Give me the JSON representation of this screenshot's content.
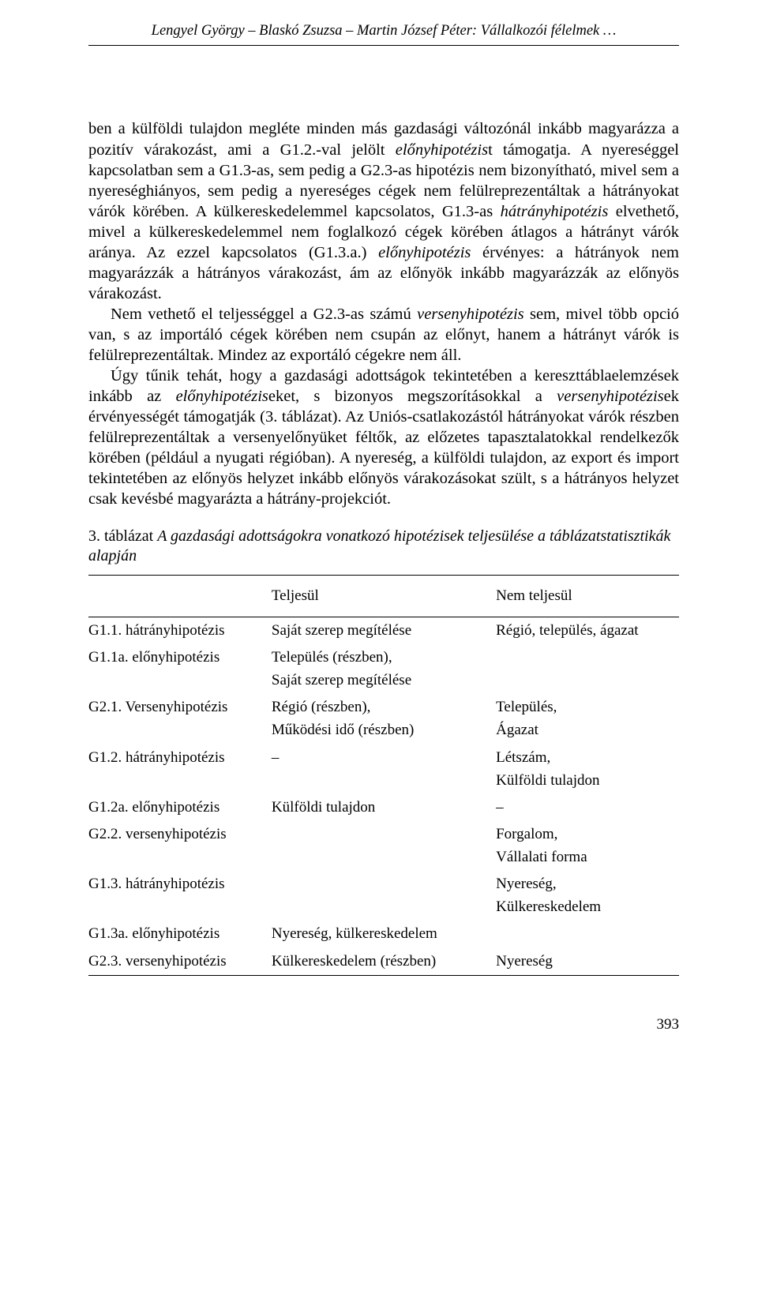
{
  "runningHead": "Lengyel György – Blaskó Zsuzsa – Martin József Péter: Vállalkozói félelmek …",
  "paragraphs": {
    "p1": "ben a külföldi tulajdon megléte minden más gazdasági változónál inkább magyarázza a pozitív várakozást, ami a G1.2.-val jelölt előnyhipotézist támogatja. A nyereséggel kapcsolatban sem a G1.3-as, sem pedig a G2.3-as hipotézis nem bizonyítható, mivel sem a nyereséghiányos, sem pedig a nyereséges cégek nem felülreprezentáltak a hátrányokat várók körében. A külkereskedelemmel kapcsolatos, G1.3-as hátrányhipotézis elvethető, mivel a külkereskedelemmel nem foglalkozó cégek körében átlagos a hátrányt várók aránya. Az ezzel kapcsolatos (G1.3.a.) előnyhipotézis érvényes: a hátrányok nem magyarázzák a hátrányos várakozást, ám az előnyök inkább magyarázzák az előnyös várakozást.",
    "p2": "Nem vethető el teljességgel a G2.3-as számú versenyhipotézis sem, mivel több opció van, s az importáló cégek körében nem csupán az előnyt, hanem a hátrányt várók is felülreprezentáltak. Mindez az exportáló cégekre nem áll.",
    "p3": "Úgy tűnik tehát, hogy a gazdasági adottságok tekintetében a kereszttáblaelemzések inkább az előnyhipotéziseket, s bizonyos megszorításokkal a versenyhipotézisek érvényességét támogatják (3. táblázat). Az Uniós-csatlakozástól hátrányokat várók részben felülreprezentáltak a versenyelőnyüket féltők, az előzetes tapasztalatokkal rendelkezők körében (például a nyugati régióban). A nyereség, a külföldi tulajdon, az export és import tekintetében az előnyös helyzet inkább előnyös várakozásokat szült, s a hátrányos helyzet csak kevésbé magyarázta a hátrány-projekciót."
  },
  "tableCaption": {
    "lead": "3. táblázat ",
    "title": "A gazdasági adottságokra vonatkozó hipotézisek teljesülése a táblázatstatisztikák alapján"
  },
  "table": {
    "headers": {
      "c1": "",
      "c2": "Teljesül",
      "c3": "Nem teljesül"
    },
    "rows": [
      {
        "a": "G1.1. hátrányhipotézis",
        "b": "Saját szerep megítélése",
        "c": "Régió, település, ágazat"
      },
      {
        "a": "G1.1a. előnyhipotézis",
        "b": "Település (részben),\nSaját szerep megítélése",
        "c": ""
      },
      {
        "a": "G2.1. Versenyhipotézis",
        "b": "Régió (részben),\nMűködési idő (részben)",
        "c": "Település,\nÁgazat"
      },
      {
        "a": "G1.2. hátrányhipotézis",
        "b": "–",
        "c": "Létszám,\nKülföldi tulajdon"
      },
      {
        "a": "G1.2a. előnyhipotézis",
        "b": "Külföldi tulajdon",
        "c": "–"
      },
      {
        "a": "G2.2. versenyhipotézis",
        "b": "",
        "c": "Forgalom,\nVállalati forma"
      },
      {
        "a": "G1.3. hátrányhipotézis",
        "b": "",
        "c": "Nyereség,\nKülkereskedelem"
      },
      {
        "a": "G1.3a. előnyhipotézis",
        "b": "Nyereség, külkereskedelem",
        "c": ""
      },
      {
        "a": "G2.3. versenyhipotézis",
        "b": "Külkereskedelem (részben)",
        "c": "Nyereség"
      }
    ]
  },
  "pageNumber": "393"
}
